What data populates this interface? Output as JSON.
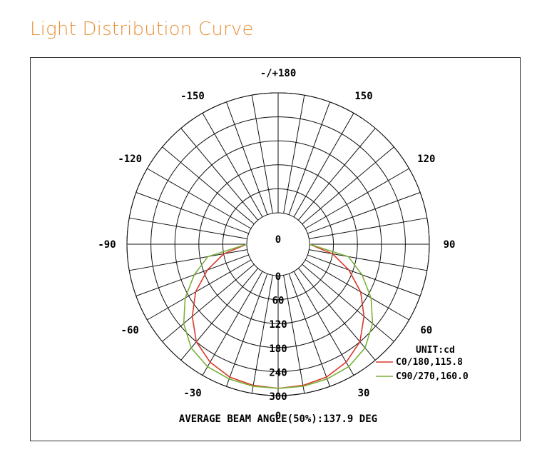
{
  "page_title": "Light Distribution Curve",
  "chart_data": {
    "type": "polar",
    "angle_labels": [
      {
        "angle": 180,
        "text": "-/+180"
      },
      {
        "angle": -150,
        "text": "-150"
      },
      {
        "angle": 150,
        "text": "150"
      },
      {
        "angle": -120,
        "text": "-120"
      },
      {
        "angle": 120,
        "text": "120"
      },
      {
        "angle": -90,
        "text": "-90"
      },
      {
        "angle": 90,
        "text": "90"
      },
      {
        "angle": -60,
        "text": "-60"
      },
      {
        "angle": 60,
        "text": "60"
      },
      {
        "angle": -30,
        "text": "-30"
      },
      {
        "angle": 30,
        "text": "30"
      },
      {
        "angle": 0,
        "text": "0"
      }
    ],
    "radial_ticks": [
      0,
      60,
      120,
      180,
      240,
      300
    ],
    "radial_max": 300,
    "inner_empty_radius": 0,
    "angle_step_deg": 10,
    "unit_label": "UNIT:cd",
    "series": [
      {
        "name": "C0/180,115.8",
        "color": "#d9382a",
        "angles": [
          -90,
          -80,
          -70,
          -60,
          -50,
          -40,
          -30,
          -20,
          -10,
          0,
          10,
          20,
          30,
          40,
          50,
          60,
          70,
          80,
          90
        ],
        "values": [
          0,
          60,
          110,
          160,
          202,
          240,
          262,
          275,
          280,
          282,
          280,
          275,
          262,
          240,
          202,
          160,
          110,
          60,
          0
        ]
      },
      {
        "name": "C90/270,160.0",
        "color": "#7ab23a",
        "angles": [
          -90,
          -80,
          -70,
          -60,
          -50,
          -40,
          -30,
          -20,
          -10,
          0,
          10,
          20,
          30,
          40,
          50,
          60,
          70,
          80,
          90
        ],
        "values": [
          0,
          100,
          145,
          190,
          230,
          260,
          275,
          280,
          282,
          282,
          282,
          280,
          275,
          260,
          230,
          190,
          145,
          100,
          0
        ]
      }
    ],
    "footer": "AVERAGE BEAM ANGLE(50%):137.9 DEG"
  }
}
